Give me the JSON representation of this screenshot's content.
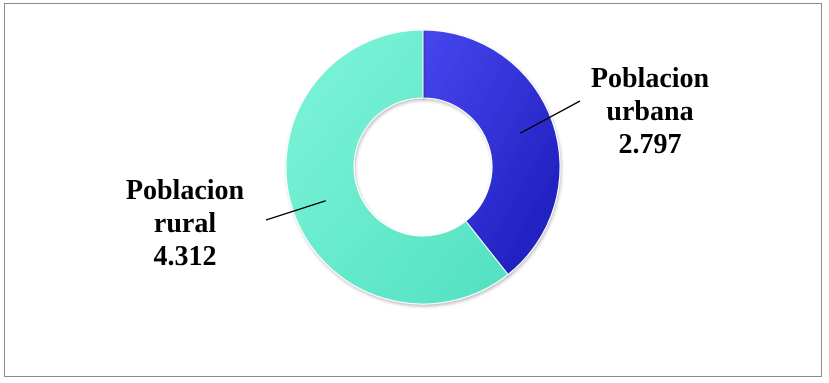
{
  "chart_data": {
    "type": "pie",
    "variant": "donut",
    "title": "",
    "categories": [
      "Poblacion urbana",
      "Poblacion rural"
    ],
    "values": [
      2797,
      4312
    ],
    "value_labels": [
      "2.797",
      "4.312"
    ],
    "label_lines": [
      [
        "Poblacion",
        "urbana"
      ],
      [
        "Poblacion",
        "rural"
      ]
    ],
    "colors": [
      "#2b2bd8",
      "#66efcf"
    ],
    "start_angle_deg": 0,
    "direction": "clockwise",
    "legend": "none",
    "data_labels": "outside with leader lines"
  }
}
